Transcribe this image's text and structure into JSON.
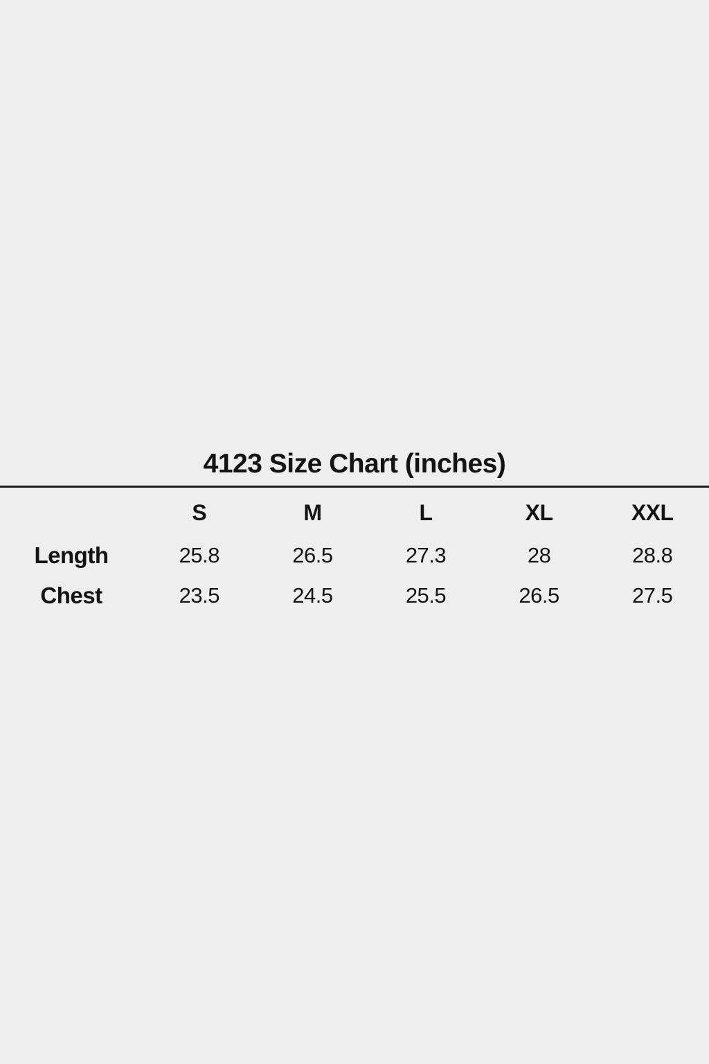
{
  "page": {
    "background_color": "#eeeeee",
    "text_color": "#141414",
    "divider_color": "#1c1c1c"
  },
  "chart_data": {
    "type": "table",
    "title": "4123 Size Chart (inches)",
    "columns": [
      "S",
      "M",
      "L",
      "XL",
      "XXL"
    ],
    "rows": [
      {
        "label": "Length",
        "values": [
          "25.8",
          "26.5",
          "27.3",
          "28",
          "28.8"
        ]
      },
      {
        "label": "Chest",
        "values": [
          "23.5",
          "24.5",
          "25.5",
          "26.5",
          "27.5"
        ]
      }
    ]
  }
}
